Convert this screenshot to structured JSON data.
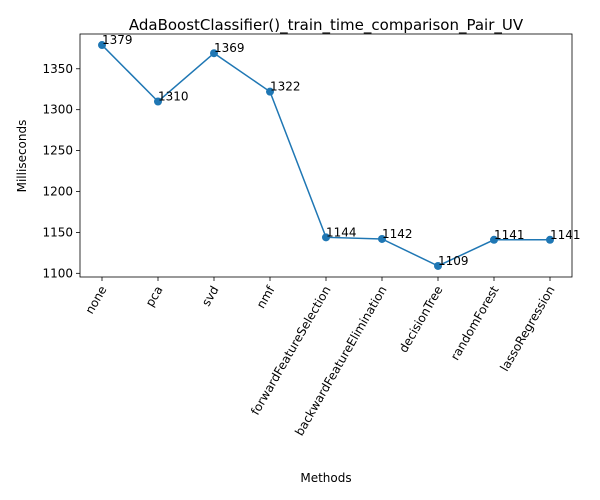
{
  "chart_data": {
    "type": "line",
    "title": "AdaBoostClassifier()_train_time_comparison_Pair_UV",
    "xlabel": "Methods",
    "ylabel": "Milliseconds",
    "categories": [
      "none",
      "pca",
      "svd",
      "nmf",
      "forwardFeatureSelection",
      "backwardFeatureElimination",
      "decisionTree",
      "randomForest",
      "lassoRegression"
    ],
    "values": [
      1379,
      1310,
      1369,
      1322,
      1144,
      1142,
      1109,
      1141,
      1141
    ],
    "data_labels": [
      "1379",
      "1310",
      "1369",
      "1322",
      "1144",
      "1142",
      "1109",
      "1141",
      "1141"
    ],
    "yticks": [
      1100,
      1150,
      1200,
      1250,
      1300,
      1350
    ],
    "ytick_labels": [
      "1100",
      "1150",
      "1200",
      "1250",
      "1300",
      "1350"
    ],
    "ylim": [
      1095.5,
      1392.5
    ],
    "grid": false,
    "series_color": "#1f77b4"
  }
}
